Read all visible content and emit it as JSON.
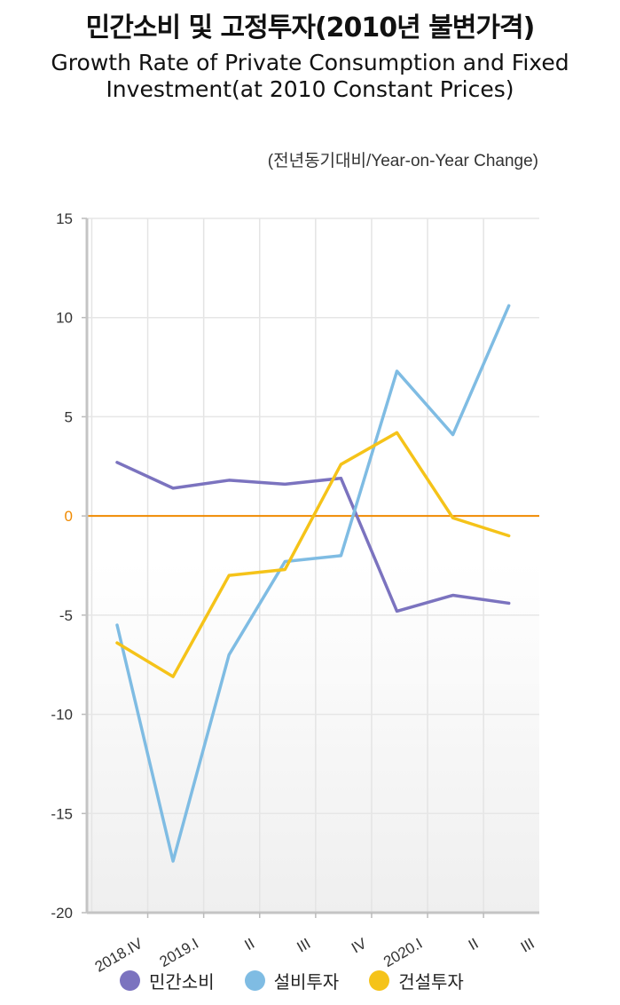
{
  "header": {
    "title_ko": "민간소비 및 고정투자(2010년 불변가격)",
    "title_en": "Growth Rate of Private Consumption and Fixed Investment(at 2010 Constant Prices)",
    "unit_note": "(전년동기대비/Year-on-Year Change)"
  },
  "colors": {
    "private_consumption": "#7b73bf",
    "equipment_investment": "#7fbce3",
    "construction_investment": "#f5c319",
    "zero_line": "#f08a00"
  },
  "chart_data": {
    "type": "line",
    "title": "민간소비 및 고정투자(2010년 불변가격)",
    "subtitle": "Growth Rate of Private Consumption and Fixed Investment(at 2010 Constant Prices)",
    "ylabel": "(전년동기대비/Year-on-Year Change)",
    "xlabel": "",
    "categories": [
      "2018.IV",
      "2019.I",
      "II",
      "III",
      "IV",
      "2020.I",
      "II",
      "III"
    ],
    "ylim": [
      -20,
      15
    ],
    "yticks": [
      15,
      10,
      5,
      0,
      -5,
      -10,
      -15,
      -20
    ],
    "grid": true,
    "legend_position": "bottom",
    "series": [
      {
        "name": "민간소비",
        "color": "#7b73bf",
        "values": [
          2.7,
          1.4,
          1.8,
          1.6,
          1.9,
          -4.8,
          -4.0,
          -4.4
        ]
      },
      {
        "name": "설비투자",
        "color": "#7fbce3",
        "values": [
          -5.5,
          -17.4,
          -7.0,
          -2.3,
          -2.0,
          7.3,
          4.1,
          10.6
        ]
      },
      {
        "name": "건설투자",
        "color": "#f5c319",
        "values": [
          -6.4,
          -8.1,
          -3.0,
          -2.7,
          2.6,
          4.2,
          -0.1,
          -1.0
        ]
      }
    ]
  }
}
